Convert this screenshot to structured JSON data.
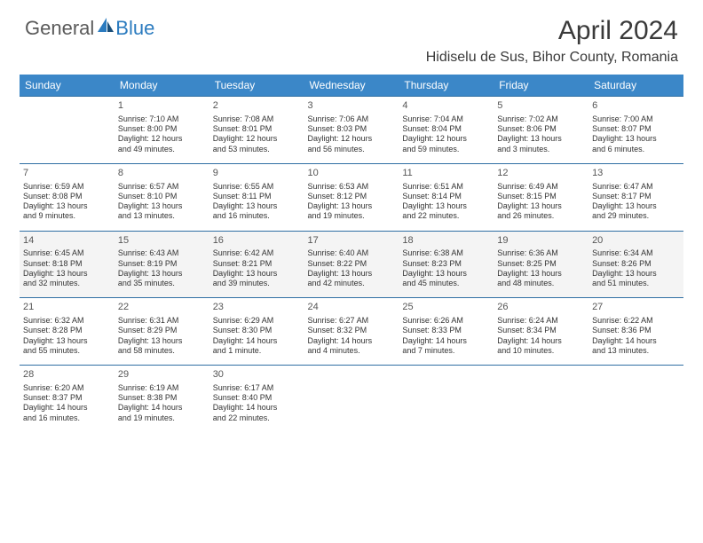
{
  "logo": {
    "general": "General",
    "blue": "Blue"
  },
  "title": "April 2024",
  "location": "Hidiselu de Sus, Bihor County, Romania",
  "colors": {
    "header_bg": "#3b87c8",
    "header_text": "#ffffff",
    "row_border": "#2f6fa3",
    "alt_row_bg": "#f4f4f4",
    "body_text": "#333333",
    "logo_gray": "#5a5a5a",
    "logo_blue": "#2b7bbf"
  },
  "day_headers": [
    "Sunday",
    "Monday",
    "Tuesday",
    "Wednesday",
    "Thursday",
    "Friday",
    "Saturday"
  ],
  "weeks": [
    [
      null,
      {
        "n": "1",
        "sr": "Sunrise: 7:10 AM",
        "ss": "Sunset: 8:00 PM",
        "d1": "Daylight: 12 hours",
        "d2": "and 49 minutes."
      },
      {
        "n": "2",
        "sr": "Sunrise: 7:08 AM",
        "ss": "Sunset: 8:01 PM",
        "d1": "Daylight: 12 hours",
        "d2": "and 53 minutes."
      },
      {
        "n": "3",
        "sr": "Sunrise: 7:06 AM",
        "ss": "Sunset: 8:03 PM",
        "d1": "Daylight: 12 hours",
        "d2": "and 56 minutes."
      },
      {
        "n": "4",
        "sr": "Sunrise: 7:04 AM",
        "ss": "Sunset: 8:04 PM",
        "d1": "Daylight: 12 hours",
        "d2": "and 59 minutes."
      },
      {
        "n": "5",
        "sr": "Sunrise: 7:02 AM",
        "ss": "Sunset: 8:06 PM",
        "d1": "Daylight: 13 hours",
        "d2": "and 3 minutes."
      },
      {
        "n": "6",
        "sr": "Sunrise: 7:00 AM",
        "ss": "Sunset: 8:07 PM",
        "d1": "Daylight: 13 hours",
        "d2": "and 6 minutes."
      }
    ],
    [
      {
        "n": "7",
        "sr": "Sunrise: 6:59 AM",
        "ss": "Sunset: 8:08 PM",
        "d1": "Daylight: 13 hours",
        "d2": "and 9 minutes."
      },
      {
        "n": "8",
        "sr": "Sunrise: 6:57 AM",
        "ss": "Sunset: 8:10 PM",
        "d1": "Daylight: 13 hours",
        "d2": "and 13 minutes."
      },
      {
        "n": "9",
        "sr": "Sunrise: 6:55 AM",
        "ss": "Sunset: 8:11 PM",
        "d1": "Daylight: 13 hours",
        "d2": "and 16 minutes."
      },
      {
        "n": "10",
        "sr": "Sunrise: 6:53 AM",
        "ss": "Sunset: 8:12 PM",
        "d1": "Daylight: 13 hours",
        "d2": "and 19 minutes."
      },
      {
        "n": "11",
        "sr": "Sunrise: 6:51 AM",
        "ss": "Sunset: 8:14 PM",
        "d1": "Daylight: 13 hours",
        "d2": "and 22 minutes."
      },
      {
        "n": "12",
        "sr": "Sunrise: 6:49 AM",
        "ss": "Sunset: 8:15 PM",
        "d1": "Daylight: 13 hours",
        "d2": "and 26 minutes."
      },
      {
        "n": "13",
        "sr": "Sunrise: 6:47 AM",
        "ss": "Sunset: 8:17 PM",
        "d1": "Daylight: 13 hours",
        "d2": "and 29 minutes."
      }
    ],
    [
      {
        "n": "14",
        "sr": "Sunrise: 6:45 AM",
        "ss": "Sunset: 8:18 PM",
        "d1": "Daylight: 13 hours",
        "d2": "and 32 minutes."
      },
      {
        "n": "15",
        "sr": "Sunrise: 6:43 AM",
        "ss": "Sunset: 8:19 PM",
        "d1": "Daylight: 13 hours",
        "d2": "and 35 minutes."
      },
      {
        "n": "16",
        "sr": "Sunrise: 6:42 AM",
        "ss": "Sunset: 8:21 PM",
        "d1": "Daylight: 13 hours",
        "d2": "and 39 minutes."
      },
      {
        "n": "17",
        "sr": "Sunrise: 6:40 AM",
        "ss": "Sunset: 8:22 PM",
        "d1": "Daylight: 13 hours",
        "d2": "and 42 minutes."
      },
      {
        "n": "18",
        "sr": "Sunrise: 6:38 AM",
        "ss": "Sunset: 8:23 PM",
        "d1": "Daylight: 13 hours",
        "d2": "and 45 minutes."
      },
      {
        "n": "19",
        "sr": "Sunrise: 6:36 AM",
        "ss": "Sunset: 8:25 PM",
        "d1": "Daylight: 13 hours",
        "d2": "and 48 minutes."
      },
      {
        "n": "20",
        "sr": "Sunrise: 6:34 AM",
        "ss": "Sunset: 8:26 PM",
        "d1": "Daylight: 13 hours",
        "d2": "and 51 minutes."
      }
    ],
    [
      {
        "n": "21",
        "sr": "Sunrise: 6:32 AM",
        "ss": "Sunset: 8:28 PM",
        "d1": "Daylight: 13 hours",
        "d2": "and 55 minutes."
      },
      {
        "n": "22",
        "sr": "Sunrise: 6:31 AM",
        "ss": "Sunset: 8:29 PM",
        "d1": "Daylight: 13 hours",
        "d2": "and 58 minutes."
      },
      {
        "n": "23",
        "sr": "Sunrise: 6:29 AM",
        "ss": "Sunset: 8:30 PM",
        "d1": "Daylight: 14 hours",
        "d2": "and 1 minute."
      },
      {
        "n": "24",
        "sr": "Sunrise: 6:27 AM",
        "ss": "Sunset: 8:32 PM",
        "d1": "Daylight: 14 hours",
        "d2": "and 4 minutes."
      },
      {
        "n": "25",
        "sr": "Sunrise: 6:26 AM",
        "ss": "Sunset: 8:33 PM",
        "d1": "Daylight: 14 hours",
        "d2": "and 7 minutes."
      },
      {
        "n": "26",
        "sr": "Sunrise: 6:24 AM",
        "ss": "Sunset: 8:34 PM",
        "d1": "Daylight: 14 hours",
        "d2": "and 10 minutes."
      },
      {
        "n": "27",
        "sr": "Sunrise: 6:22 AM",
        "ss": "Sunset: 8:36 PM",
        "d1": "Daylight: 14 hours",
        "d2": "and 13 minutes."
      }
    ],
    [
      {
        "n": "28",
        "sr": "Sunrise: 6:20 AM",
        "ss": "Sunset: 8:37 PM",
        "d1": "Daylight: 14 hours",
        "d2": "and 16 minutes."
      },
      {
        "n": "29",
        "sr": "Sunrise: 6:19 AM",
        "ss": "Sunset: 8:38 PM",
        "d1": "Daylight: 14 hours",
        "d2": "and 19 minutes."
      },
      {
        "n": "30",
        "sr": "Sunrise: 6:17 AM",
        "ss": "Sunset: 8:40 PM",
        "d1": "Daylight: 14 hours",
        "d2": "and 22 minutes."
      },
      null,
      null,
      null,
      null
    ]
  ]
}
